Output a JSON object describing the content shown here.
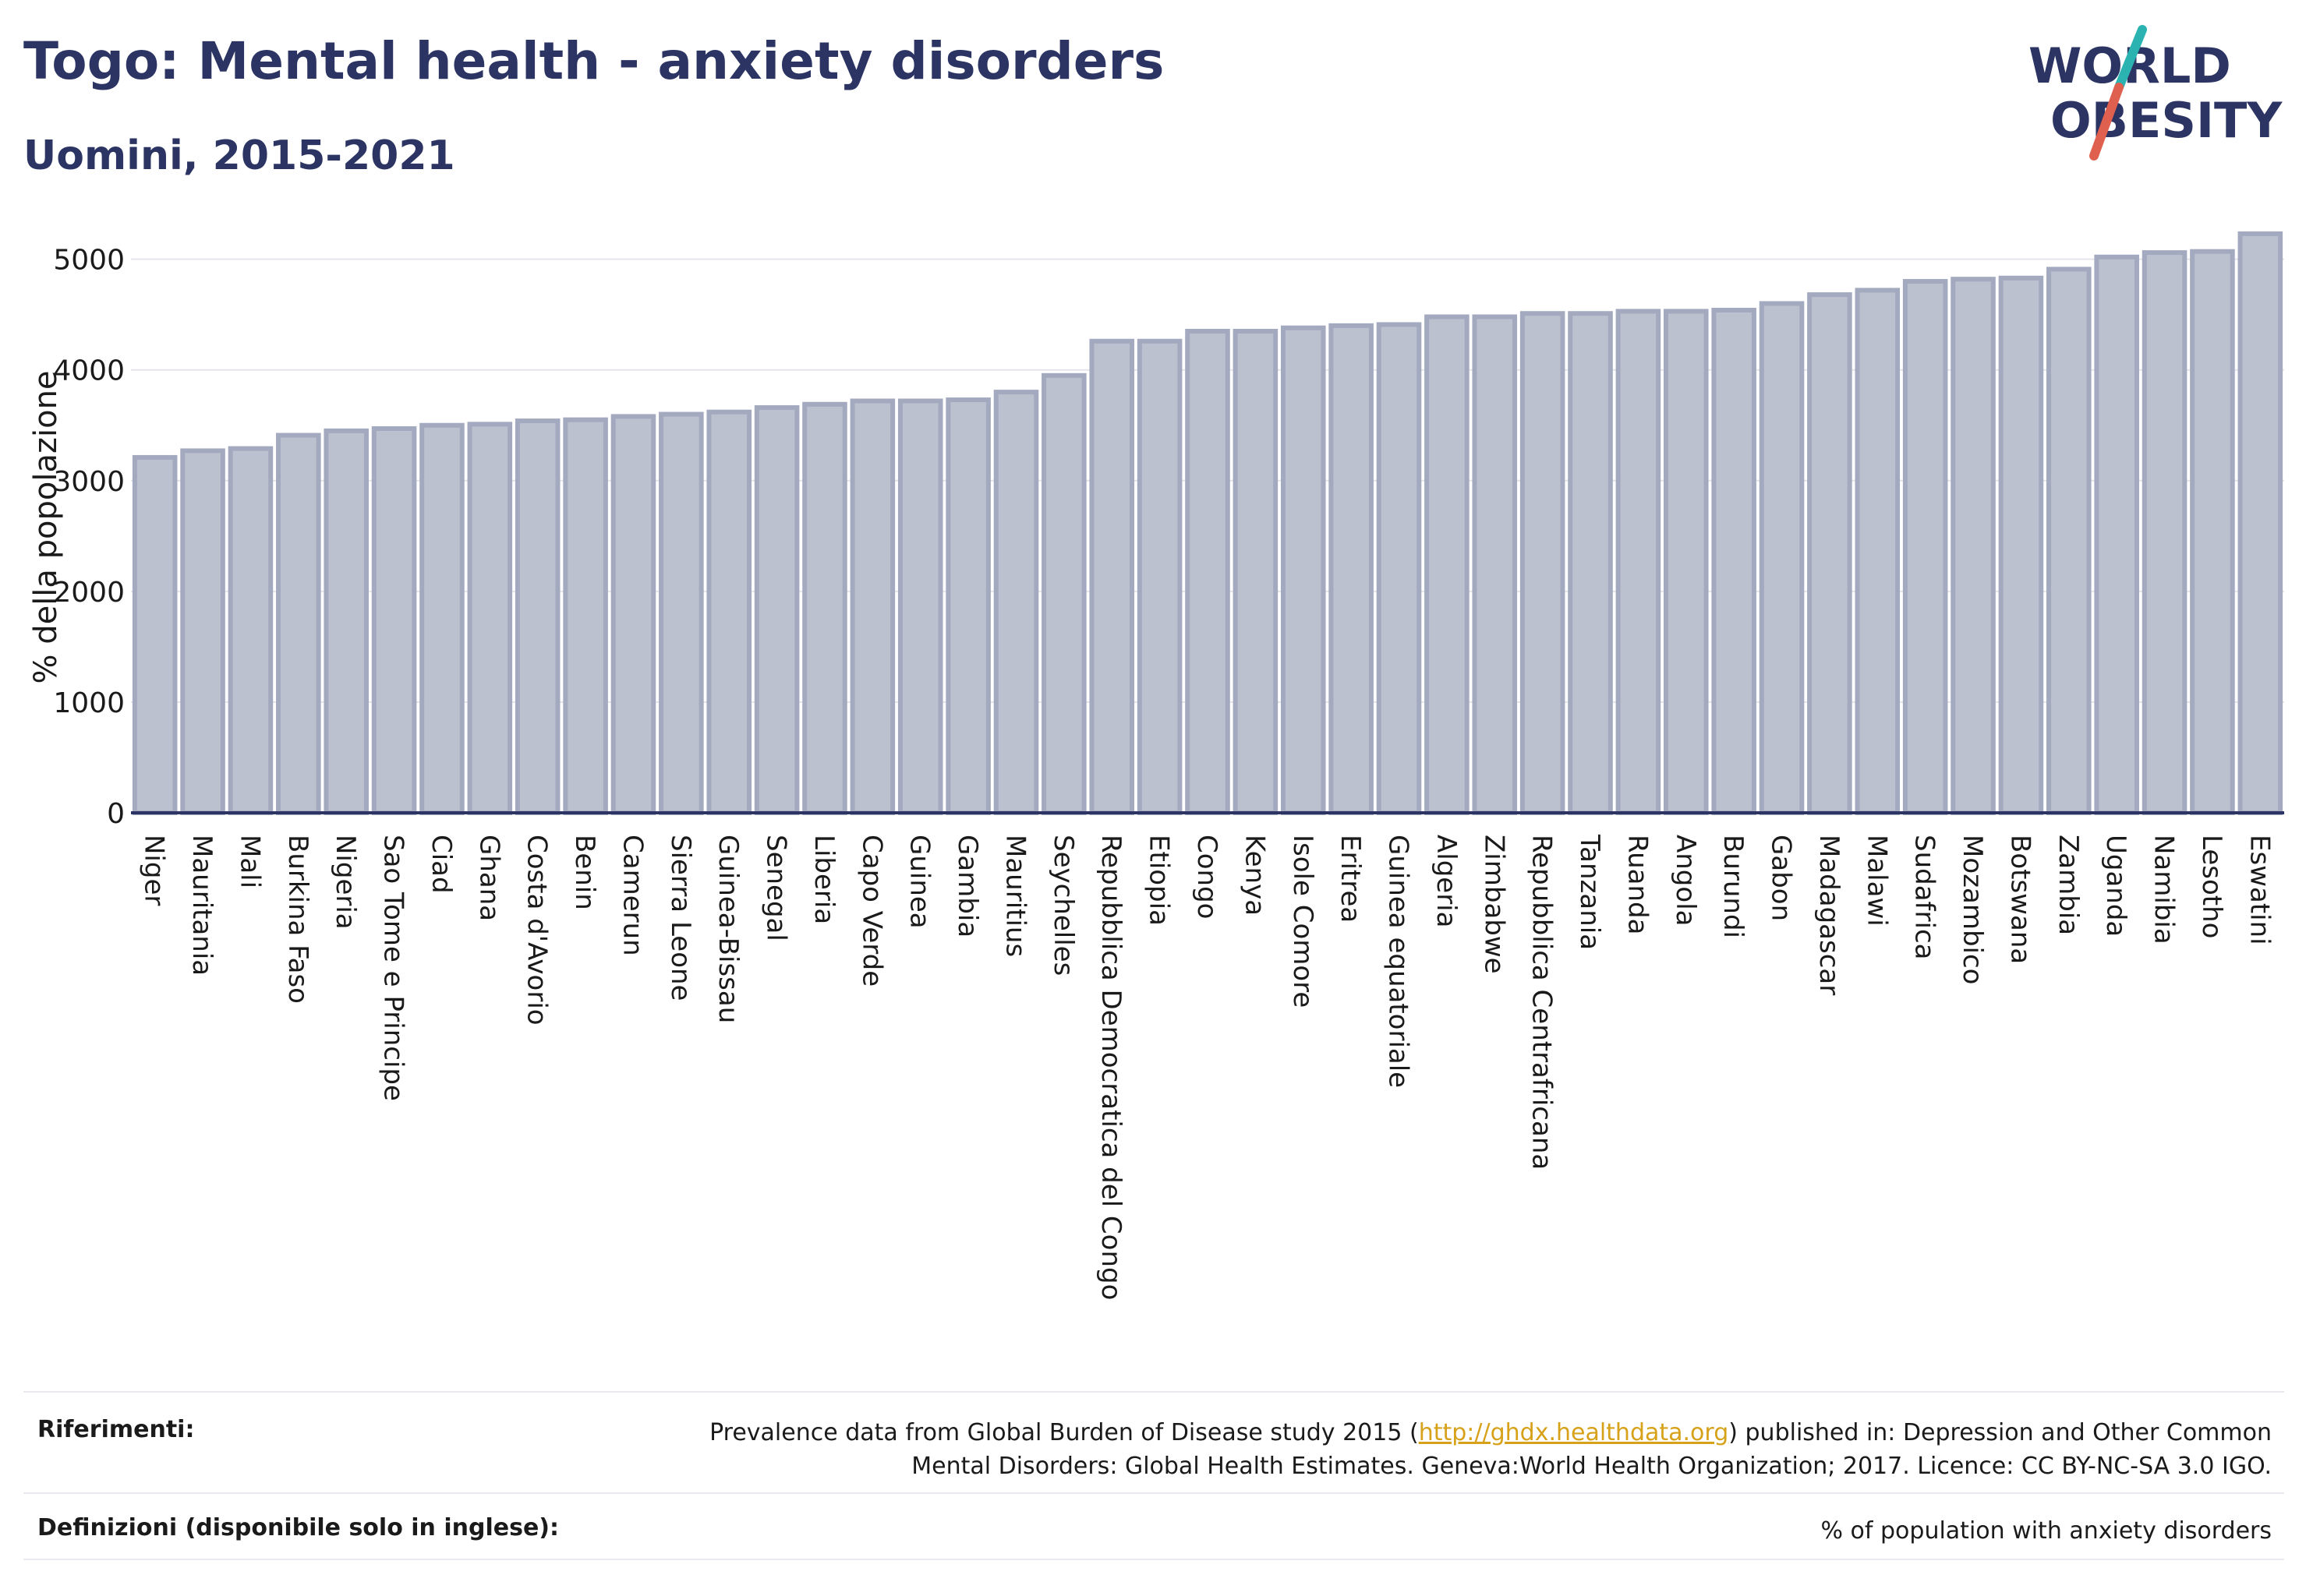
{
  "header": {
    "title": "Togo: Mental health - anxiety disorders",
    "subtitle": "Uomini, 2015-2021"
  },
  "logo": {
    "line1": "WORLD",
    "line2": "OBESITY",
    "colors": {
      "text": "#2b3462",
      "slash_top": "#2bb3b1",
      "slash_bottom": "#e0604f"
    }
  },
  "chart_data": {
    "type": "bar",
    "title": "Togo: Mental health - anxiety disorders",
    "subtitle": "Uomini, 2015-2021",
    "xlabel": "",
    "ylabel": "% della popolazione",
    "ylim": [
      0,
      5300
    ],
    "yticks": [
      0,
      1000,
      2000,
      3000,
      4000,
      5000
    ],
    "grid": true,
    "bar_color": "#bcc1cf",
    "bar_edge_color": "#a3a9bf",
    "categories": [
      "Niger",
      "Mauritania",
      "Mali",
      "Burkina Faso",
      "Nigeria",
      "Sao Tome e Principe",
      "Ciad",
      "Ghana",
      "Costa d'Avorio",
      "Benin",
      "Camerun",
      "Sierra Leone",
      "Guinea-Bissau",
      "Senegal",
      "Liberia",
      "Capo Verde",
      "Guinea",
      "Gambia",
      "Mauritius",
      "Seychelles",
      "Repubblica Democratica del Congo",
      "Etiopia",
      "Congo",
      "Kenya",
      "Isole Comore",
      "Eritrea",
      "Guinea equatoriale",
      "Algeria",
      "Zimbabwe",
      "Repubblica Centrafricana",
      "Tanzania",
      "Ruanda",
      "Angola",
      "Burundi",
      "Gabon",
      "Madagascar",
      "Malawi",
      "Sudafrica",
      "Mozambico",
      "Botswana",
      "Zambia",
      "Uganda",
      "Namibia",
      "Lesotho",
      "Eswatini"
    ],
    "values": [
      3210,
      3270,
      3290,
      3410,
      3450,
      3470,
      3500,
      3510,
      3540,
      3550,
      3580,
      3600,
      3620,
      3660,
      3690,
      3720,
      3720,
      3730,
      3800,
      3950,
      4260,
      4260,
      4350,
      4350,
      4380,
      4400,
      4410,
      4480,
      4480,
      4510,
      4510,
      4530,
      4530,
      4540,
      4600,
      4680,
      4720,
      4800,
      4820,
      4830,
      4910,
      5020,
      5060,
      5070,
      5230
    ]
  },
  "footer": {
    "references_label": "Riferimenti:",
    "references_text_before": "Prevalence data from Global Burden of Disease study 2015 (",
    "references_link": "http://ghdx.healthdata.org",
    "references_text_after": ") published in: Depression and Other Common",
    "references_text_line2": "Mental Disorders: Global Health Estimates. Geneva:World Health Organization; 2017. Licence: CC BY-NC-SA 3.0 IGO.",
    "definitions_label": "Definizioni (disponibile solo in inglese):",
    "definitions_text": "% of population with anxiety disorders"
  }
}
